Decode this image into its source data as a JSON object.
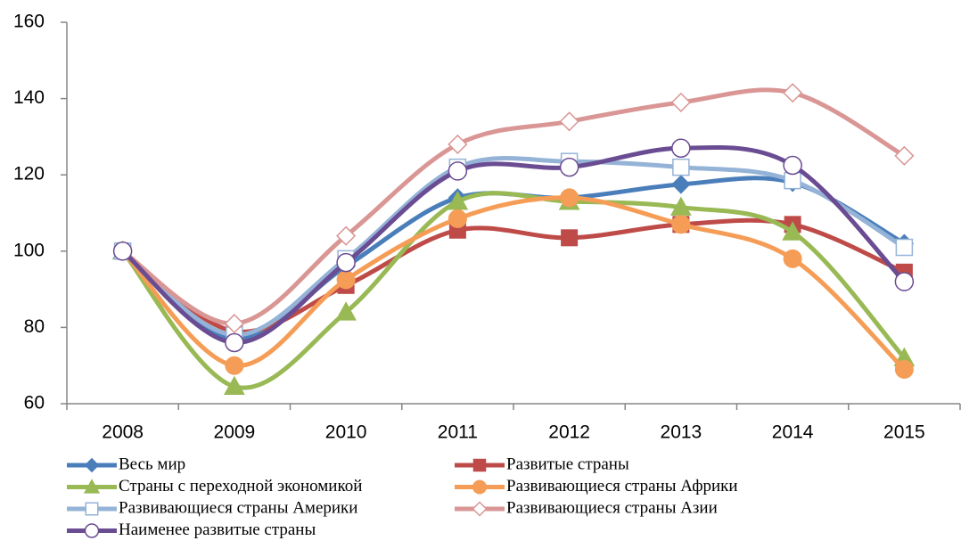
{
  "chart_data": {
    "type": "line",
    "smooth": true,
    "grid": false,
    "categories": [
      "2008",
      "2009",
      "2010",
      "2011",
      "2012",
      "2013",
      "2014",
      "2015"
    ],
    "ylim": [
      60,
      160
    ],
    "yticks": [
      60,
      80,
      100,
      120,
      140,
      160
    ],
    "legend": "bottom",
    "series": [
      {
        "name": "Весь мир",
        "color": "#4a7ebb",
        "marker": "diamond",
        "filled": true,
        "values": [
          100,
          77,
          96,
          114,
          114,
          117.5,
          118,
          102
        ]
      },
      {
        "name": "Развитые страны",
        "color": "#be4b48",
        "marker": "square",
        "filled": true,
        "values": [
          100,
          79,
          91,
          105.5,
          103.5,
          107,
          107,
          94.5
        ]
      },
      {
        "name": "Страны с переходной экономикой",
        "color": "#98b954",
        "marker": "triangle",
        "filled": true,
        "values": [
          100,
          64.5,
          84,
          113,
          113,
          111.5,
          105,
          72
        ]
      },
      {
        "name": "Развивающиеся страны Африки",
        "color": "#f59d56",
        "marker": "circle",
        "filled": true,
        "values": [
          100,
          70,
          92.5,
          108.5,
          114,
          107,
          98,
          69
        ]
      },
      {
        "name": "Развивающиеся страны Америки",
        "color": "#95b3d7",
        "marker": "square",
        "filled": false,
        "values": [
          100,
          78,
          98,
          122,
          123.5,
          122,
          118.5,
          101
        ]
      },
      {
        "name": "Развивающиеся страны Азии",
        "color": "#d99694",
        "marker": "diamond",
        "filled": false,
        "values": [
          100,
          81,
          104,
          128,
          134,
          139,
          141.5,
          125
        ]
      },
      {
        "name": "Наименее развитые страны",
        "color": "#6a4c93",
        "marker": "circle",
        "filled": false,
        "values": [
          100,
          76,
          97,
          121,
          122,
          127,
          122.5,
          92
        ]
      }
    ]
  }
}
